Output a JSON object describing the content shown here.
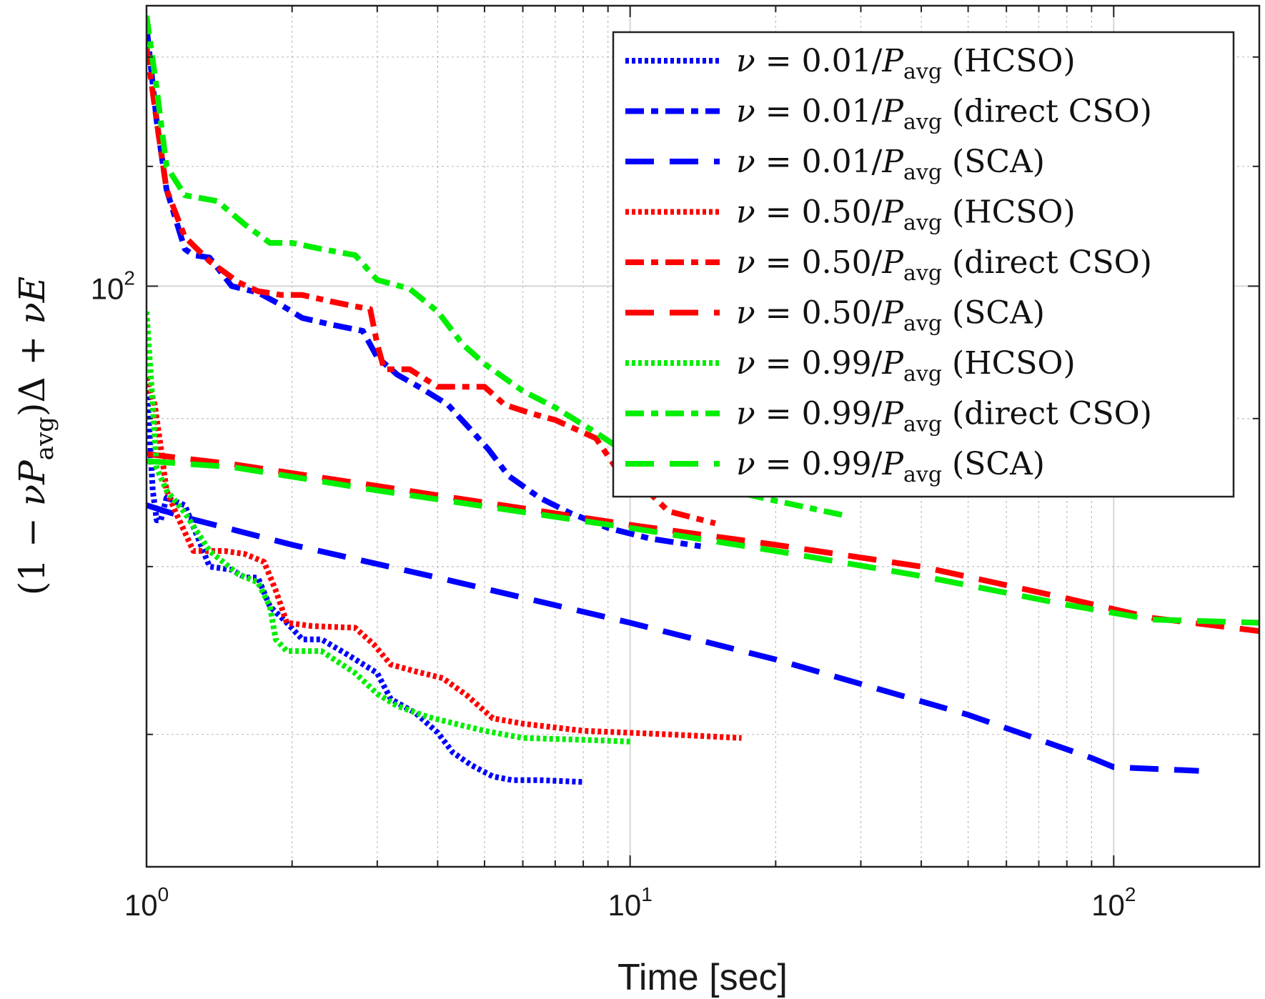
{
  "chart_data": {
    "type": "line",
    "xlabel": "Time [sec]",
    "ylabel": "(1 − νP_avg)Δ + νE",
    "x_scale": "log",
    "y_scale": "log",
    "xlim": [
      1,
      200
    ],
    "ylim": [
      63,
      125
    ],
    "grid": true,
    "x_ticks": [
      {
        "base": "10",
        "exp": "0",
        "value": 1
      },
      {
        "base": "10",
        "exp": "1",
        "value": 10
      },
      {
        "base": "10",
        "exp": "2",
        "value": 100
      }
    ],
    "y_ticks": [
      {
        "base": "10",
        "exp": "2",
        "value": 100
      }
    ],
    "legend_position": "top-right",
    "series": [
      {
        "name": "ν = 0.01/P_avg (HCSO)",
        "nu": "0.01",
        "method": "(HCSO)",
        "color": "#0000ff",
        "style": "dotted",
        "x": [
          1.0,
          1.03,
          1.05,
          1.07,
          1.1,
          1.2,
          1.35,
          1.5,
          1.6,
          1.7,
          1.8,
          1.95,
          2.1,
          2.3,
          2.6,
          3.0,
          3.2,
          3.6,
          4.0,
          4.3,
          4.7,
          5.2,
          5.7,
          6.5,
          8.0
        ],
        "y": [
          93.0,
          85.0,
          83.0,
          83.0,
          84.5,
          84.0,
          80.0,
          79.8,
          79.3,
          79.3,
          77.5,
          76.5,
          75.5,
          75.5,
          74.6,
          73.5,
          72.0,
          71.2,
          70.1,
          69.0,
          68.3,
          67.7,
          67.5,
          67.5,
          67.4
        ]
      },
      {
        "name": "ν = 0.01/P_avg (direct CSO)",
        "nu": "0.01",
        "method": "(direct CSO)",
        "color": "#0000ff",
        "style": "dashdot",
        "x": [
          1.0,
          1.05,
          1.1,
          1.2,
          1.25,
          1.35,
          1.5,
          1.7,
          1.9,
          2.1,
          2.4,
          2.8,
          3.0,
          3.3,
          3.7,
          4.2,
          4.6,
          5.1,
          5.6,
          6.5,
          7.5,
          9.0,
          11.0,
          14.0
        ],
        "y": [
          123.0,
          114.0,
          108.0,
          103.0,
          102.5,
          102.3,
          100.0,
          99.5,
          98.5,
          97.5,
          97.0,
          96.5,
          94.5,
          93.2,
          92.2,
          91.0,
          89.5,
          87.8,
          86.0,
          84.5,
          83.5,
          82.5,
          81.8,
          81.3
        ]
      },
      {
        "name": "ν = 0.01/P_avg (SCA)",
        "nu": "0.01",
        "method": "(SCA)",
        "color": "#0000ff",
        "style": "longdash",
        "x": [
          1.0,
          1.2,
          2.0,
          4.0,
          10.0,
          20.0,
          50.0,
          90.0,
          100.0,
          150.0
        ],
        "y": [
          84.0,
          83.2,
          81.4,
          79.3,
          76.5,
          74.3,
          71.1,
          68.7,
          68.2,
          68.0
        ]
      },
      {
        "name": "ν = 0.50/P_avg (HCSO)",
        "nu": "0.50",
        "method": "(HCSO)",
        "color": "#ff0000",
        "style": "dotted",
        "x": [
          1.0,
          1.04,
          1.07,
          1.1,
          1.15,
          1.25,
          1.35,
          1.45,
          1.6,
          1.75,
          1.85,
          1.95,
          2.2,
          2.7,
          2.95,
          3.2,
          3.6,
          4.1,
          4.6,
          5.2,
          6.0,
          8.0,
          12.0,
          17.0
        ],
        "y": [
          93.0,
          91.0,
          88.0,
          85.0,
          83.5,
          81.0,
          81.0,
          81.0,
          80.8,
          80.3,
          78.5,
          76.5,
          76.3,
          76.2,
          75.2,
          74.0,
          73.6,
          73.2,
          72.2,
          70.9,
          70.6,
          70.2,
          70.0,
          69.8
        ]
      },
      {
        "name": "ν = 0.50/P_avg (direct CSO)",
        "nu": "0.50",
        "method": "(direct CSO)",
        "color": "#ff0000",
        "style": "dashdot",
        "x": [
          1.0,
          1.05,
          1.1,
          1.2,
          1.35,
          1.55,
          1.7,
          1.9,
          2.1,
          2.4,
          2.7,
          2.9,
          3.0,
          3.1,
          3.5,
          4.0,
          5.0,
          5.5,
          6.2,
          7.0,
          8.5,
          9.5,
          11.0,
          12.0,
          15.0
        ],
        "y": [
          121.0,
          114.0,
          108.0,
          104.0,
          102.0,
          100.3,
          99.6,
          99.3,
          99.3,
          98.8,
          98.4,
          98.2,
          95.5,
          93.6,
          93.6,
          92.3,
          92.3,
          91.0,
          90.4,
          89.9,
          88.6,
          86.2,
          84.8,
          83.6,
          82.8
        ]
      },
      {
        "name": "ν = 0.50/P_avg (SCA)",
        "nu": "0.50",
        "method": "(SCA)",
        "color": "#ff0000",
        "style": "longdash",
        "x": [
          1.0,
          1.5,
          3.0,
          10.0,
          20.0,
          40.0,
          80.0,
          120.0,
          200.0
        ],
        "y": [
          87.5,
          86.8,
          85.3,
          82.7,
          81.4,
          80.0,
          78.0,
          76.8,
          76.0
        ]
      },
      {
        "name": "ν = 0.99/P_avg (HCSO)",
        "nu": "0.99",
        "method": "(HCSO)",
        "color": "#00ee00",
        "style": "dotted",
        "x": [
          1.0,
          1.03,
          1.05,
          1.1,
          1.2,
          1.35,
          1.55,
          1.7,
          1.8,
          1.85,
          1.95,
          2.3,
          2.7,
          3.0,
          3.3,
          3.8,
          4.5,
          5.0,
          6.0,
          8.0,
          10.0
        ],
        "y": [
          98.0,
          91.0,
          86.5,
          85.0,
          83.5,
          81.0,
          79.5,
          79.0,
          77.5,
          75.5,
          74.8,
          74.8,
          73.5,
          72.3,
          71.6,
          71.0,
          70.5,
          70.2,
          69.8,
          69.7,
          69.6
        ]
      },
      {
        "name": "ν = 0.99/P_avg (direct CSO)",
        "nu": "0.99",
        "method": "(direct CSO)",
        "color": "#00ee00",
        "style": "dashdot",
        "x": [
          1.0,
          1.05,
          1.1,
          1.2,
          1.4,
          1.6,
          1.8,
          2.0,
          2.3,
          2.7,
          3.0,
          3.5,
          4.0,
          4.5,
          5.0,
          6.0,
          7.0,
          8.5,
          9.5,
          12.0,
          15.0,
          20.0,
          28.0
        ],
        "y": [
          124.0,
          117.0,
          110.0,
          107.5,
          107.0,
          105.0,
          103.5,
          103.5,
          103.0,
          102.5,
          100.5,
          99.8,
          98.0,
          95.5,
          94.0,
          92.0,
          90.8,
          89.0,
          87.9,
          86.8,
          85.2,
          84.3,
          83.3
        ]
      },
      {
        "name": "ν = 0.99/P_avg (SCA)",
        "nu": "0.99",
        "method": "(SCA)",
        "color": "#00ee00",
        "style": "longdash",
        "x": [
          1.0,
          1.5,
          3.0,
          10.0,
          20.0,
          40.0,
          80.0,
          120.0,
          200.0
        ],
        "y": [
          87.0,
          86.6,
          85.0,
          82.5,
          81.0,
          79.4,
          77.6,
          76.7,
          76.5
        ]
      }
    ]
  }
}
